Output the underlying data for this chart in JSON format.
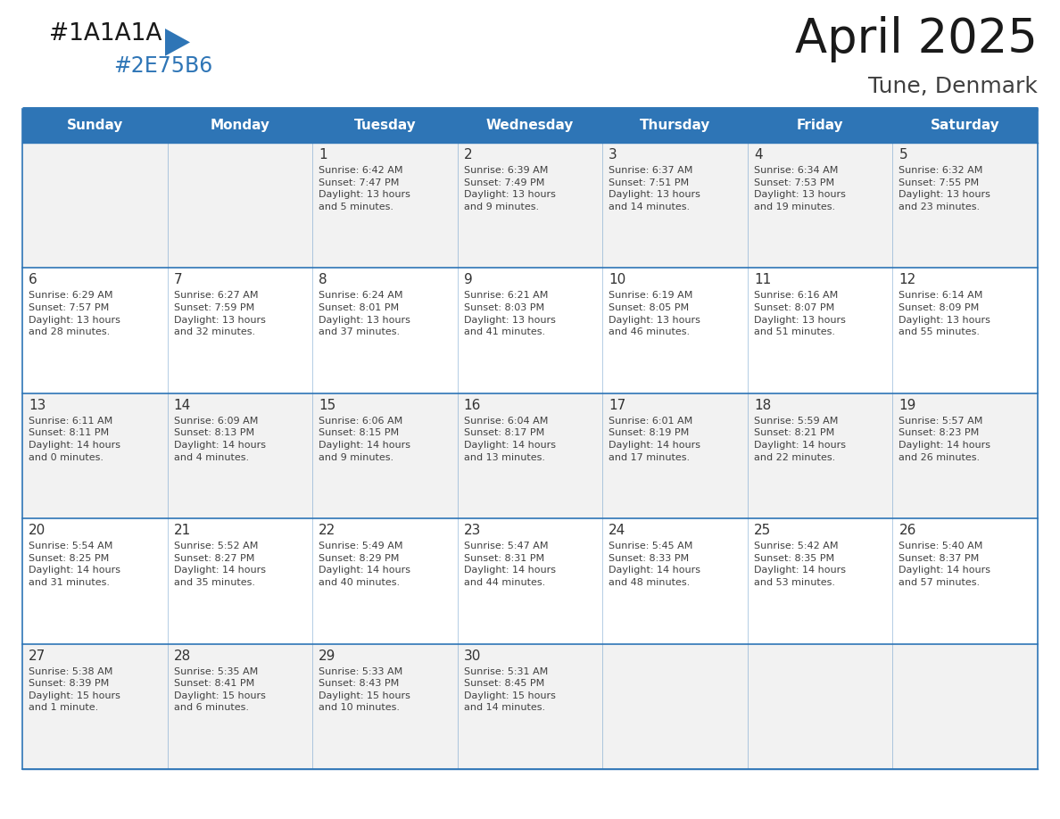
{
  "title": "April 2025",
  "subtitle": "Tune, Denmark",
  "header_color": "#2E75B6",
  "header_text_color": "#FFFFFF",
  "days_of_week": [
    "Sunday",
    "Monday",
    "Tuesday",
    "Wednesday",
    "Thursday",
    "Friday",
    "Saturday"
  ],
  "cell_bg_even": "#F2F2F2",
  "cell_bg_odd": "#FFFFFF",
  "border_color": "#2E75B6",
  "row_line_color": "#2E75B6",
  "text_color": "#404040",
  "day_num_color": "#333333",
  "title_color": "#1A1A1A",
  "subtitle_color": "#404040",
  "logo_black": "#1A1A1A",
  "logo_blue": "#2E75B6",
  "calendar_data": [
    [
      {
        "day": null,
        "info": null
      },
      {
        "day": null,
        "info": null
      },
      {
        "day": "1",
        "info": "Sunrise: 6:42 AM\nSunset: 7:47 PM\nDaylight: 13 hours\nand 5 minutes."
      },
      {
        "day": "2",
        "info": "Sunrise: 6:39 AM\nSunset: 7:49 PM\nDaylight: 13 hours\nand 9 minutes."
      },
      {
        "day": "3",
        "info": "Sunrise: 6:37 AM\nSunset: 7:51 PM\nDaylight: 13 hours\nand 14 minutes."
      },
      {
        "day": "4",
        "info": "Sunrise: 6:34 AM\nSunset: 7:53 PM\nDaylight: 13 hours\nand 19 minutes."
      },
      {
        "day": "5",
        "info": "Sunrise: 6:32 AM\nSunset: 7:55 PM\nDaylight: 13 hours\nand 23 minutes."
      }
    ],
    [
      {
        "day": "6",
        "info": "Sunrise: 6:29 AM\nSunset: 7:57 PM\nDaylight: 13 hours\nand 28 minutes."
      },
      {
        "day": "7",
        "info": "Sunrise: 6:27 AM\nSunset: 7:59 PM\nDaylight: 13 hours\nand 32 minutes."
      },
      {
        "day": "8",
        "info": "Sunrise: 6:24 AM\nSunset: 8:01 PM\nDaylight: 13 hours\nand 37 minutes."
      },
      {
        "day": "9",
        "info": "Sunrise: 6:21 AM\nSunset: 8:03 PM\nDaylight: 13 hours\nand 41 minutes."
      },
      {
        "day": "10",
        "info": "Sunrise: 6:19 AM\nSunset: 8:05 PM\nDaylight: 13 hours\nand 46 minutes."
      },
      {
        "day": "11",
        "info": "Sunrise: 6:16 AM\nSunset: 8:07 PM\nDaylight: 13 hours\nand 51 minutes."
      },
      {
        "day": "12",
        "info": "Sunrise: 6:14 AM\nSunset: 8:09 PM\nDaylight: 13 hours\nand 55 minutes."
      }
    ],
    [
      {
        "day": "13",
        "info": "Sunrise: 6:11 AM\nSunset: 8:11 PM\nDaylight: 14 hours\nand 0 minutes."
      },
      {
        "day": "14",
        "info": "Sunrise: 6:09 AM\nSunset: 8:13 PM\nDaylight: 14 hours\nand 4 minutes."
      },
      {
        "day": "15",
        "info": "Sunrise: 6:06 AM\nSunset: 8:15 PM\nDaylight: 14 hours\nand 9 minutes."
      },
      {
        "day": "16",
        "info": "Sunrise: 6:04 AM\nSunset: 8:17 PM\nDaylight: 14 hours\nand 13 minutes."
      },
      {
        "day": "17",
        "info": "Sunrise: 6:01 AM\nSunset: 8:19 PM\nDaylight: 14 hours\nand 17 minutes."
      },
      {
        "day": "18",
        "info": "Sunrise: 5:59 AM\nSunset: 8:21 PM\nDaylight: 14 hours\nand 22 minutes."
      },
      {
        "day": "19",
        "info": "Sunrise: 5:57 AM\nSunset: 8:23 PM\nDaylight: 14 hours\nand 26 minutes."
      }
    ],
    [
      {
        "day": "20",
        "info": "Sunrise: 5:54 AM\nSunset: 8:25 PM\nDaylight: 14 hours\nand 31 minutes."
      },
      {
        "day": "21",
        "info": "Sunrise: 5:52 AM\nSunset: 8:27 PM\nDaylight: 14 hours\nand 35 minutes."
      },
      {
        "day": "22",
        "info": "Sunrise: 5:49 AM\nSunset: 8:29 PM\nDaylight: 14 hours\nand 40 minutes."
      },
      {
        "day": "23",
        "info": "Sunrise: 5:47 AM\nSunset: 8:31 PM\nDaylight: 14 hours\nand 44 minutes."
      },
      {
        "day": "24",
        "info": "Sunrise: 5:45 AM\nSunset: 8:33 PM\nDaylight: 14 hours\nand 48 minutes."
      },
      {
        "day": "25",
        "info": "Sunrise: 5:42 AM\nSunset: 8:35 PM\nDaylight: 14 hours\nand 53 minutes."
      },
      {
        "day": "26",
        "info": "Sunrise: 5:40 AM\nSunset: 8:37 PM\nDaylight: 14 hours\nand 57 minutes."
      }
    ],
    [
      {
        "day": "27",
        "info": "Sunrise: 5:38 AM\nSunset: 8:39 PM\nDaylight: 15 hours\nand 1 minute."
      },
      {
        "day": "28",
        "info": "Sunrise: 5:35 AM\nSunset: 8:41 PM\nDaylight: 15 hours\nand 6 minutes."
      },
      {
        "day": "29",
        "info": "Sunrise: 5:33 AM\nSunset: 8:43 PM\nDaylight: 15 hours\nand 10 minutes."
      },
      {
        "day": "30",
        "info": "Sunrise: 5:31 AM\nSunset: 8:45 PM\nDaylight: 15 hours\nand 14 minutes."
      },
      {
        "day": null,
        "info": null
      },
      {
        "day": null,
        "info": null
      },
      {
        "day": null,
        "info": null
      }
    ]
  ]
}
